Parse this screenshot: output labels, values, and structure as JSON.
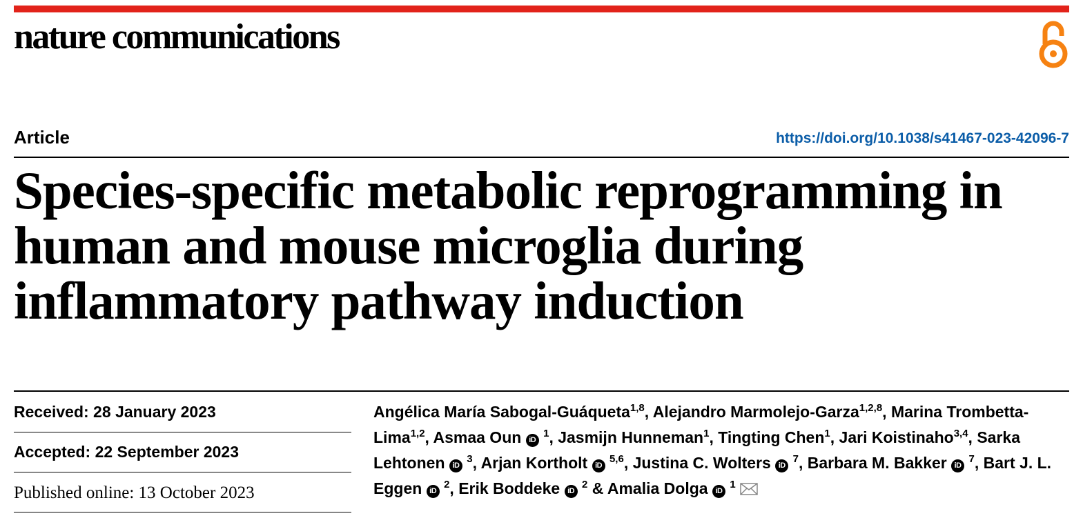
{
  "header": {
    "journal": "nature communications",
    "open_access_icon": "open-access-icon",
    "accent_color": "#e2231a",
    "oa_color": "#f68212"
  },
  "article": {
    "type": "Article",
    "doi": "https://doi.org/10.1038/s41467-023-42096-7",
    "title": "Species-specific metabolic reprogramming in human and mouse microglia during inflammatory pathway induction"
  },
  "dates": {
    "received": "Received: 28 January 2023",
    "accepted": "Accepted: 22 September 2023",
    "published": "Published online: 13 October 2023"
  },
  "authors": [
    {
      "name": "Angélica María Sabogal-Guáqueta",
      "affil": "1,8",
      "orcid": false,
      "sep": ", "
    },
    {
      "name": "Alejandro Marmolejo-Garza",
      "affil": "1,2,8",
      "orcid": false,
      "sep": ", "
    },
    {
      "name": "Marina Trombetta-Lima",
      "affil": "1,2",
      "orcid": false,
      "sep": ", "
    },
    {
      "name": "Asmaa Oun",
      "affil": "1",
      "orcid": true,
      "sep": ", "
    },
    {
      "name": "Jasmijn Hunneman",
      "affil": "1",
      "orcid": false,
      "sep": ", "
    },
    {
      "name": "Tingting Chen",
      "affil": "1",
      "orcid": false,
      "sep": ", "
    },
    {
      "name": "Jari Koistinaho",
      "affil": "3,4",
      "orcid": false,
      "sep": ", "
    },
    {
      "name": "Sarka Lehtonen",
      "affil": "3",
      "orcid": true,
      "sep": ", "
    },
    {
      "name": "Arjan Kortholt",
      "affil": "5,6",
      "orcid": true,
      "sep": ", "
    },
    {
      "name": "Justina C. Wolters",
      "affil": "7",
      "orcid": true,
      "sep": ", "
    },
    {
      "name": "Barbara M. Bakker",
      "affil": "7",
      "orcid": true,
      "sep": ", "
    },
    {
      "name": "Bart J. L. Eggen",
      "affil": "2",
      "orcid": true,
      "sep": ", "
    },
    {
      "name": "Erik Boddeke",
      "affil": "2",
      "orcid": true,
      "sep": " & "
    },
    {
      "name": "Amalia Dolga",
      "affil": "1",
      "orcid": true,
      "sep": "",
      "corresponding": true
    }
  ],
  "orcid_label": "iD",
  "corresponding_icon": "envelope-icon"
}
